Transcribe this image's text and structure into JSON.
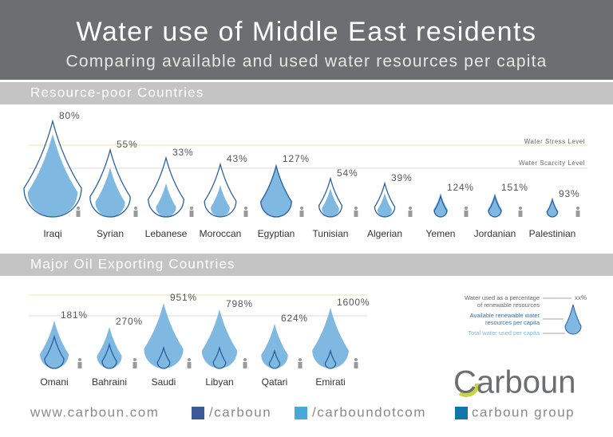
{
  "header": {
    "title": "Water use of Middle East residents",
    "subtitle": "Comparing available and used water resources per capita"
  },
  "sections": [
    {
      "title": "Resource-poor Countries",
      "levels": [
        "Water Stress Level",
        "Water Scarcity Level"
      ],
      "items": [
        {
          "label": "Iraqi",
          "value": "80%"
        },
        {
          "label": "Syrian",
          "value": "55%"
        },
        {
          "label": "Lebanese",
          "value": "33%"
        },
        {
          "label": "Moroccan",
          "value": "43%"
        },
        {
          "label": "Egyptian",
          "value": "127%"
        },
        {
          "label": "Tunisian",
          "value": "54%"
        },
        {
          "label": "Algerian",
          "value": "39%"
        },
        {
          "label": "Yemen",
          "value": "124%"
        },
        {
          "label": "Jordanian",
          "value": "151%"
        },
        {
          "label": "Palestinian",
          "value": "93%"
        }
      ]
    },
    {
      "title": "Major Oil Exporting Countries",
      "items": [
        {
          "label": "Omani",
          "value": "181%"
        },
        {
          "label": "Bahraini",
          "value": "270%"
        },
        {
          "label": "Saudi",
          "value": "951%"
        },
        {
          "label": "Libyan",
          "value": "798%"
        },
        {
          "label": "Qatari",
          "value": "624%"
        },
        {
          "label": "Emirati",
          "value": "1600%"
        }
      ]
    }
  ],
  "legend": {
    "percentage": [
      "Water used as a percentage",
      "of renewable resources"
    ],
    "marker": "xx%",
    "available": [
      "Available renewable water",
      "resources per capita"
    ],
    "used": "Total water used per capita"
  },
  "logo": "Carboun",
  "footer": [
    "www.carboun.com",
    "/carboun",
    "/carboundotcom",
    "carboun group"
  ]
}
